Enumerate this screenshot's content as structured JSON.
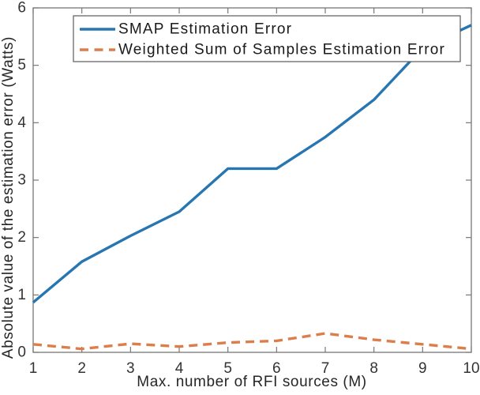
{
  "chart_data": {
    "type": "line",
    "title": "",
    "xlabel": "Max. number of RFI sources (M)",
    "ylabel": "Absolute value of the estimation error (Watts)",
    "x": [
      1,
      2,
      3,
      4,
      5,
      6,
      7,
      8,
      9,
      10
    ],
    "xlim": [
      1,
      10
    ],
    "ylim": [
      0,
      6
    ],
    "xticks": [
      1,
      2,
      3,
      4,
      5,
      6,
      7,
      8,
      9,
      10
    ],
    "yticks": [
      0,
      1,
      2,
      3,
      4,
      5,
      6
    ],
    "grid": false,
    "box": true,
    "legend_position": "top-left-inside",
    "axis_color": "#777777",
    "background": "#ffffff",
    "series": [
      {
        "name": "SMAP Estimation Error",
        "values": [
          0.87,
          1.58,
          2.03,
          2.45,
          3.2,
          3.2,
          3.75,
          4.4,
          5.3,
          5.7
        ],
        "color": "#2876B1",
        "line_style": "solid"
      },
      {
        "name": "Weighted Sum of Samples Estimation Error",
        "values": [
          0.14,
          0.06,
          0.15,
          0.1,
          0.17,
          0.2,
          0.33,
          0.22,
          0.14,
          0.06
        ],
        "color": "#DC7E4B",
        "line_style": "dashed"
      }
    ]
  }
}
